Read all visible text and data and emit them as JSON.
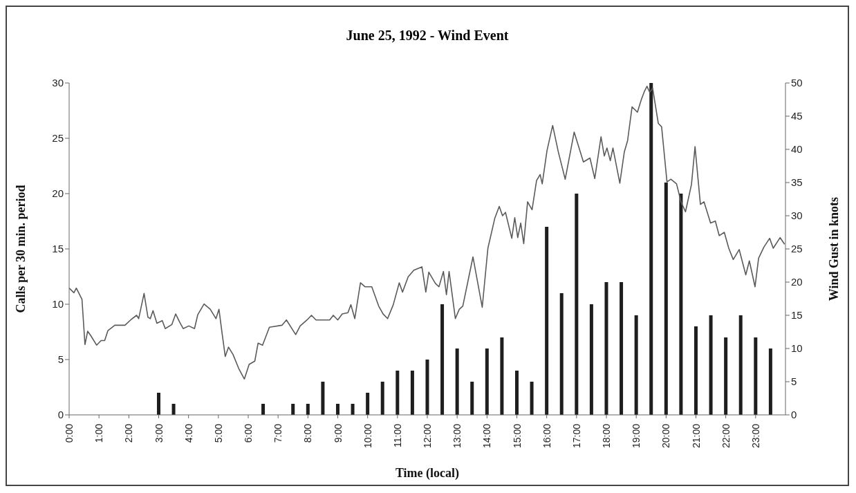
{
  "chart_data": {
    "type": "bar",
    "title": "June 25, 1992 - Wind Event",
    "xlabel": "Time (local)",
    "ylabel": "Calls per 30 min. period",
    "y2label": "Wind Gust in knots",
    "xlim": [
      0,
      24
    ],
    "xticks": [
      {
        "value": 0,
        "label": "0:00"
      },
      {
        "value": 1,
        "label": "1:00"
      },
      {
        "value": 2,
        "label": "2:00"
      },
      {
        "value": 3,
        "label": "3:00"
      },
      {
        "value": 4,
        "label": "4:00"
      },
      {
        "value": 5,
        "label": "5:00"
      },
      {
        "value": 6,
        "label": "6:00"
      },
      {
        "value": 7,
        "label": "7:00"
      },
      {
        "value": 8,
        "label": "8:00"
      },
      {
        "value": 9,
        "label": "9:00"
      },
      {
        "value": 10,
        "label": "10:00"
      },
      {
        "value": 11,
        "label": "11:00"
      },
      {
        "value": 12,
        "label": "12:00"
      },
      {
        "value": 13,
        "label": "13:00"
      },
      {
        "value": 14,
        "label": "14:00"
      },
      {
        "value": 15,
        "label": "15:00"
      },
      {
        "value": 16,
        "label": "16:00"
      },
      {
        "value": 17,
        "label": "17:00"
      },
      {
        "value": 18,
        "label": "18:00"
      },
      {
        "value": 19,
        "label": "19:00"
      },
      {
        "value": 20,
        "label": "20:00"
      },
      {
        "value": 21,
        "label": "21:00"
      },
      {
        "value": 22,
        "label": "22:00"
      },
      {
        "value": 23,
        "label": "23:00"
      }
    ],
    "ylim": [
      0,
      30
    ],
    "yticks": [
      0,
      5,
      10,
      15,
      20,
      25,
      30
    ],
    "y2lim": [
      0,
      50
    ],
    "y2ticks": [
      0,
      5,
      10,
      15,
      20,
      25,
      30,
      35,
      40,
      45,
      50
    ],
    "grid": false,
    "legend": false,
    "series": [
      {
        "color": "#1e1e1e",
        "x": [
          0,
          0.5,
          1,
          1.5,
          2,
          2.5,
          3,
          3.5,
          4,
          4.5,
          5,
          5.5,
          6,
          6.5,
          7,
          7.5,
          8,
          8.5,
          9,
          9.5,
          10,
          10.5,
          11,
          11.5,
          12,
          12.5,
          13,
          13.5,
          14,
          14.5,
          15,
          15.5,
          16,
          16.5,
          17,
          17.5,
          18,
          18.5,
          19,
          19.5,
          20,
          20.5,
          21,
          21.5,
          22,
          22.5,
          23,
          23.5
        ],
        "values": [
          0,
          0,
          0,
          0,
          0,
          0,
          2,
          1,
          0,
          0,
          0,
          0,
          0,
          1,
          0,
          1,
          1,
          3,
          1,
          1,
          2,
          3,
          4,
          4,
          5,
          10,
          6,
          3,
          6,
          7,
          4,
          3,
          17,
          11,
          20,
          10,
          12,
          12,
          9,
          30,
          21,
          20,
          8,
          9,
          7,
          9,
          7,
          6
        ]
      },
      {
        "type": "line",
        "axis": "y2",
        "color": "#5a5a5a",
        "x": [
          0.0,
          0.16,
          0.24,
          0.43,
          0.53,
          0.62,
          0.73,
          0.92,
          1.07,
          1.19,
          1.3,
          1.53,
          1.87,
          2.06,
          2.26,
          2.33,
          2.51,
          2.64,
          2.72,
          2.81,
          2.94,
          3.12,
          3.22,
          3.44,
          3.57,
          3.7,
          3.82,
          4.01,
          4.2,
          4.31,
          4.52,
          4.73,
          4.92,
          5.02,
          5.13,
          5.23,
          5.34,
          5.49,
          5.68,
          5.87,
          6.03,
          6.22,
          6.33,
          6.48,
          6.71,
          7.13,
          7.28,
          7.59,
          7.74,
          7.97,
          8.12,
          8.27,
          8.73,
          8.85,
          9.0,
          9.15,
          9.34,
          9.44,
          9.57,
          9.76,
          9.91,
          10.14,
          10.37,
          10.52,
          10.67,
          10.86,
          11.06,
          11.17,
          11.36,
          11.55,
          11.82,
          11.95,
          12.05,
          12.27,
          12.39,
          12.54,
          12.64,
          12.73,
          12.94,
          13.07,
          13.19,
          13.53,
          13.84,
          14.03,
          14.26,
          14.41,
          14.52,
          14.62,
          14.83,
          14.93,
          15.03,
          15.13,
          15.23,
          15.36,
          15.51,
          15.66,
          15.78,
          15.85,
          16.01,
          16.2,
          16.39,
          16.62,
          16.92,
          17.23,
          17.45,
          17.61,
          17.82,
          17.93,
          18.02,
          18.13,
          18.22,
          18.45,
          18.6,
          18.71,
          18.86,
          19.04,
          19.17,
          19.28,
          19.36,
          19.45,
          19.55,
          19.74,
          19.85,
          20.03,
          20.16,
          20.35,
          20.5,
          20.65,
          20.85,
          20.97,
          21.15,
          21.27,
          21.49,
          21.65,
          21.78,
          21.95,
          22.1,
          22.25,
          22.45,
          22.67,
          22.79,
          22.98,
          23.1,
          23.28,
          23.47,
          23.59,
          23.82,
          23.97
        ],
        "values": [
          19.1,
          18.4,
          19.1,
          17.4,
          10.6,
          12.6,
          11.9,
          10.5,
          11.2,
          11.2,
          12.7,
          13.5,
          13.5,
          14.3,
          15.0,
          14.5,
          18.3,
          14.7,
          14.5,
          15.7,
          13.8,
          14.2,
          13.0,
          13.6,
          15.2,
          14.0,
          13.0,
          13.4,
          13.0,
          15.1,
          16.7,
          15.9,
          14.5,
          15.9,
          12.1,
          8.8,
          10.2,
          9.1,
          7.0,
          5.4,
          7.6,
          8.1,
          10.8,
          10.5,
          13.2,
          13.5,
          14.3,
          12.1,
          13.4,
          14.3,
          15.0,
          14.3,
          14.3,
          15.0,
          14.3,
          15.2,
          15.4,
          16.6,
          14.5,
          19.9,
          19.3,
          19.3,
          16.4,
          15.2,
          14.5,
          16.6,
          19.9,
          18.5,
          20.8,
          21.8,
          22.3,
          18.5,
          21.5,
          19.8,
          19.3,
          21.6,
          18.1,
          21.6,
          14.5,
          15.9,
          16.4,
          23.8,
          16.2,
          25.1,
          29.6,
          31.4,
          30.0,
          30.5,
          26.6,
          29.7,
          26.7,
          28.9,
          25.8,
          32.1,
          30.9,
          35.3,
          36.2,
          34.8,
          39.8,
          43.6,
          39.6,
          35.5,
          42.6,
          38.1,
          38.7,
          35.6,
          41.9,
          39.0,
          40.2,
          38.3,
          40.2,
          34.9,
          39.6,
          41.3,
          46.4,
          45.6,
          47.5,
          48.8,
          49.5,
          48.6,
          49.2,
          43.9,
          43.4,
          35.1,
          35.5,
          34.8,
          32.1,
          30.6,
          34.7,
          40.4,
          31.7,
          32.1,
          28.9,
          29.2,
          27.0,
          27.5,
          25.1,
          23.4,
          24.9,
          21.1,
          23.2,
          19.3,
          23.6,
          25.3,
          26.6,
          25.1,
          26.7,
          25.7
        ]
      }
    ]
  }
}
